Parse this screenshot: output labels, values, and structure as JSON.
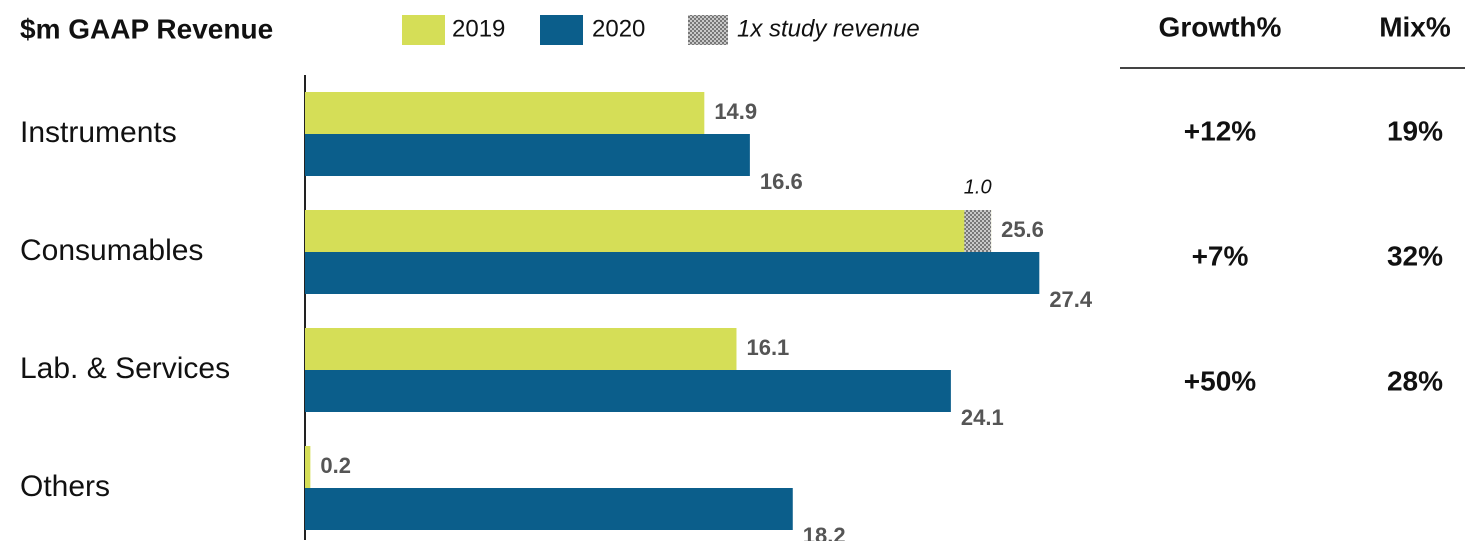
{
  "chart_data": {
    "type": "bar",
    "orientation": "horizontal",
    "title": "$m GAAP Revenue",
    "categories": [
      "Instruments",
      "Consumables",
      "Lab. & Services",
      "Others"
    ],
    "series": [
      {
        "name": "2019",
        "color": "#d5de57",
        "values": [
          14.9,
          25.6,
          16.1,
          0.2
        ]
      },
      {
        "name": "2020",
        "color": "#0b5e8b",
        "values": [
          16.6,
          27.4,
          24.1,
          18.2
        ]
      },
      {
        "name": "1x study revenue",
        "color": "#aaaaaa",
        "pattern": "hatch",
        "part_of_series": 0,
        "values": [
          null,
          1.0,
          null,
          null
        ],
        "value_labels": [
          null,
          "1.0",
          null,
          null
        ]
      }
    ],
    "xlim": [
      0,
      30
    ]
  },
  "table": {
    "columns": [
      "Growth%",
      "Mix%"
    ],
    "rows": [
      [
        "+12%",
        "19%"
      ],
      [
        "+7%",
        "32%"
      ],
      [
        "+50%",
        "28%"
      ]
    ]
  }
}
